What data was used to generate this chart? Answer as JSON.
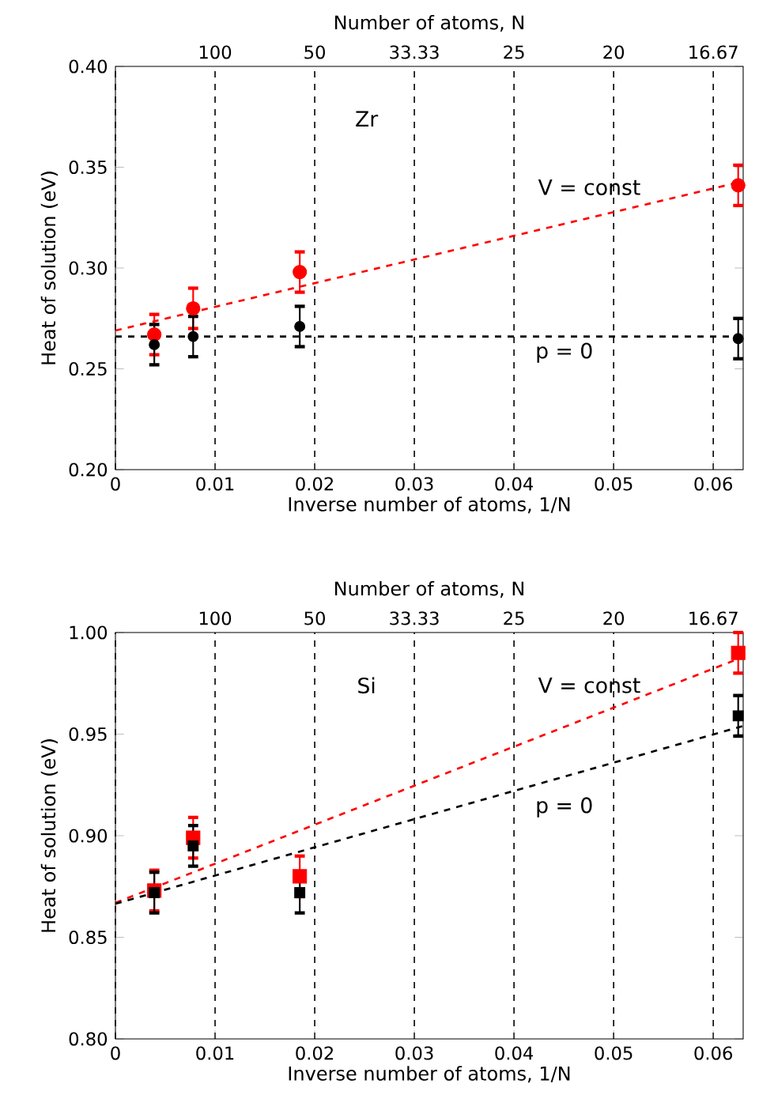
{
  "chart_data": [
    {
      "type": "scatter",
      "xlabel": "Inverse number of atoms, 1/N",
      "ylabel": "Heat of solution (eV)",
      "x2label": "Number of atoms, N",
      "xlim": [
        0,
        0.063
      ],
      "xticks": [
        0,
        0.01,
        0.02,
        0.03,
        0.04,
        0.05,
        0.06
      ],
      "ylim": [
        0.2,
        0.4
      ],
      "yticks": [
        {
          "value": 0.2,
          "label": "0.20"
        },
        0.25,
        {
          "value": 0.3,
          "label": "0.30"
        },
        0.35,
        {
          "value": 0.4,
          "label": "0.40"
        }
      ],
      "grid": "x",
      "series": [
        {
          "color": "#ff0000",
          "marker": "circle",
          "x": [
            0.0039,
            0.0078,
            0.0185,
            0.0625
          ],
          "values": [
            0.267,
            0.28,
            0.298,
            0.341
          ],
          "errors": [
            0.01,
            0.01,
            0.01,
            0.01
          ]
        },
        {
          "color": "#000000",
          "marker": "circle",
          "x": [
            0.0039,
            0.0078,
            0.0185,
            0.0625
          ],
          "values": [
            0.262,
            0.266,
            0.271,
            0.265
          ],
          "errors": [
            0.01,
            0.01,
            0.01,
            0.01
          ]
        },
        {
          "type": "line",
          "color": "#ff0000",
          "line_style": "dashed",
          "x": [
            0,
            0.063
          ],
          "values": [
            0.269,
            0.343
          ]
        },
        {
          "type": "line",
          "color": "#000000",
          "line_style": "dashed",
          "x": [
            0,
            0.063
          ],
          "values": [
            0.266,
            0.266
          ]
        }
      ],
      "annotations": [
        "Zr",
        "V = const",
        "p = 0",
        "100",
        "50",
        "33.33",
        "25",
        "20",
        "16.67"
      ]
    },
    {
      "type": "scatter",
      "xlabel": "Inverse number of atoms, 1/N",
      "ylabel": "Heat of solution (eV)",
      "x2label": "Number of atoms, N",
      "xlim": [
        0,
        0.063
      ],
      "xticks": [
        0,
        0.01,
        0.02,
        0.03,
        0.04,
        0.05,
        0.06
      ],
      "ylim": [
        0.8,
        1
      ],
      "yticks": [
        {
          "value": 0.8,
          "label": "0.80"
        },
        0.85,
        {
          "value": 0.9,
          "label": "0.90"
        },
        0.95,
        {
          "value": 1,
          "label": "1.00"
        }
      ],
      "grid": "x",
      "series": [
        {
          "color": "#ff0000",
          "marker": "square",
          "x": [
            0.0039,
            0.0078,
            0.0185,
            0.0625
          ],
          "values": [
            0.873,
            0.899,
            0.88,
            0.99
          ],
          "errors": [
            0.01,
            0.01,
            0.01,
            0.01
          ]
        },
        {
          "color": "#000000",
          "marker": "square",
          "x": [
            0.0039,
            0.0078,
            0.0185,
            0.0625
          ],
          "values": [
            0.872,
            0.895,
            0.872,
            0.959
          ],
          "errors": [
            0.01,
            0.01,
            0.01,
            0.01
          ]
        },
        {
          "type": "line",
          "color": "#ff0000",
          "line_style": "dashed",
          "x": [
            0,
            0.063
          ],
          "values": [
            0.867,
            0.988
          ]
        },
        {
          "type": "line",
          "color": "#000000",
          "line_style": "dashed",
          "x": [
            0,
            0.063
          ],
          "values": [
            0.8665,
            0.954
          ]
        }
      ],
      "annotations": [
        "Si",
        "V = const",
        "p = 0",
        "100",
        "50",
        "33.33",
        "25",
        "20",
        "16.67"
      ]
    }
  ]
}
